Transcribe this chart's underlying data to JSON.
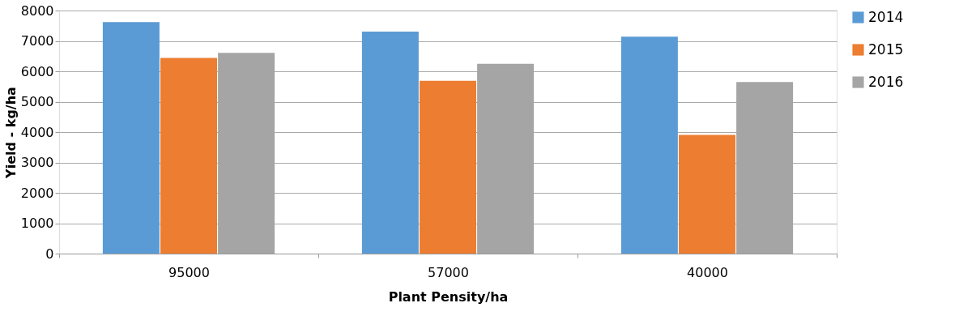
{
  "chart_data": {
    "type": "bar",
    "xlabel": "Plant Pensity/ha",
    "ylabel": "Yield - kg/ha",
    "categories": [
      "95000",
      "57000",
      "40000"
    ],
    "series": [
      {
        "name": "2014",
        "color": "#5b9bd5",
        "values": [
          7620,
          7310,
          7140
        ]
      },
      {
        "name": "2015",
        "color": "#ed7d31",
        "values": [
          6440,
          5690,
          3910
        ]
      },
      {
        "name": "2016",
        "color": "#a5a5a5",
        "values": [
          6610,
          6250,
          5650
        ]
      }
    ],
    "ylim": [
      0,
      8000
    ],
    "yticks": [
      0,
      1000,
      2000,
      3000,
      4000,
      5000,
      6000,
      7000,
      8000
    ],
    "grid": "y",
    "legend": "right"
  }
}
